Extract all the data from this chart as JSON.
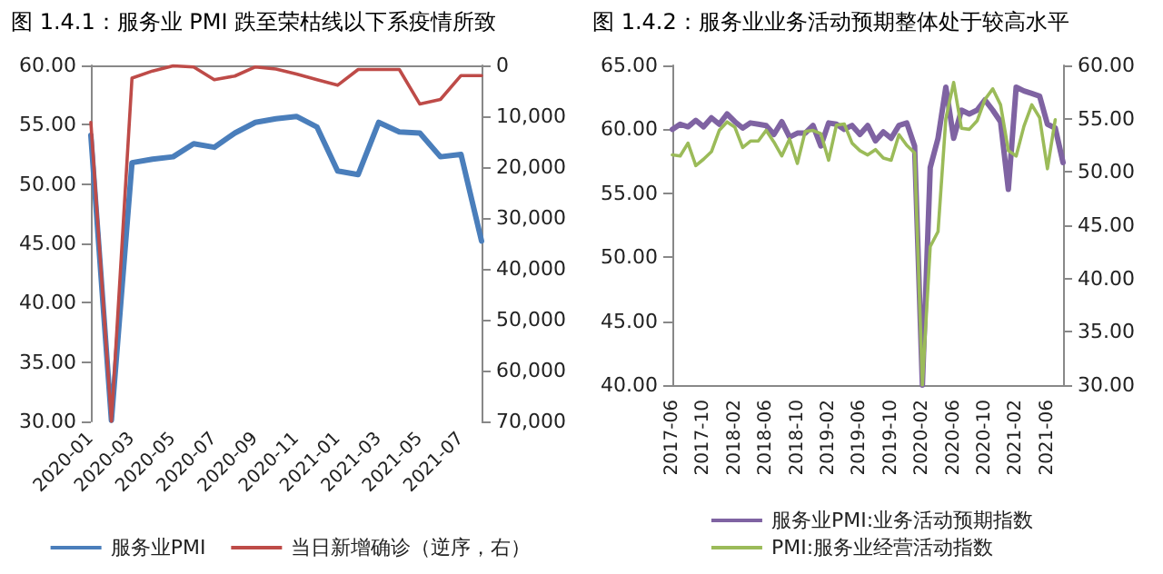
{
  "chart_data": [
    {
      "type": "line",
      "title": "图 1.4.1：服务业 PMI 跌至荣枯线以下系疫情所致",
      "categories": [
        "2020-01",
        null,
        "2020-03",
        null,
        "2020-05",
        null,
        "2020-07",
        null,
        "2020-09",
        null,
        "2020-11",
        null,
        "2021-01",
        null,
        "2021-03",
        null,
        "2021-05",
        null,
        "2021-07",
        null
      ],
      "series": [
        {
          "name": "服务业PMI",
          "color": "#4a7ebb",
          "values": [
            54.1,
            30.1,
            51.8,
            52.1,
            52.3,
            53.4,
            53.1,
            54.3,
            55.2,
            55.5,
            55.7,
            54.8,
            51.1,
            50.8,
            55.2,
            54.4,
            54.3,
            52.3,
            52.5,
            45.2
          ]
        },
        {
          "name": "当日新增确诊（逆序，右）",
          "color": "#be4b48",
          "axis": "y2",
          "values": [
            11200,
            70000,
            2500,
            1100,
            100,
            300,
            2800,
            2100,
            300,
            700,
            1700,
            2800,
            3900,
            800,
            800,
            800,
            7600,
            6700,
            2000,
            2000
          ]
        }
      ],
      "ylim": [
        30,
        60
      ],
      "yticks": [
        {
          "value": 30,
          "label": "30.00"
        },
        {
          "value": 35,
          "label": "35.00"
        },
        {
          "value": 40,
          "label": "40.00"
        },
        {
          "value": 45,
          "label": "45.00"
        },
        {
          "value": 50,
          "label": "50.00"
        },
        {
          "value": 55,
          "label": "55.00"
        },
        {
          "value": 60,
          "label": "60.00"
        }
      ],
      "y2lim": [
        70000,
        0
      ],
      "y2ticks": [
        0,
        {
          "value": 10000,
          "label": "10,000"
        },
        {
          "value": 20000,
          "label": "20,000"
        },
        {
          "value": 30000,
          "label": "30,000"
        },
        {
          "value": 40000,
          "label": "40,000"
        },
        {
          "value": 50000,
          "label": "50,000"
        },
        {
          "value": 60000,
          "label": "60,000"
        },
        {
          "value": 70000,
          "label": "70,000"
        }
      ],
      "grid": false,
      "legend": "bottom",
      "marker": "none",
      "line_style": "solid"
    },
    {
      "type": "line",
      "title": "图 1.4.2：服务业业务活动预期整体处于较高水平",
      "categories": [
        "2017-06",
        null,
        null,
        null,
        "2017-10",
        null,
        null,
        null,
        "2018-02",
        null,
        null,
        null,
        "2018-06",
        null,
        null,
        null,
        "2018-10",
        null,
        null,
        null,
        "2019-02",
        null,
        null,
        null,
        "2019-06",
        null,
        null,
        null,
        "2019-10",
        null,
        null,
        null,
        "2020-02",
        null,
        null,
        null,
        "2020-06",
        null,
        null,
        null,
        "2020-10",
        null,
        null,
        null,
        "2021-02",
        null,
        null,
        null,
        "2021-06",
        null,
        null
      ],
      "series": [
        {
          "name": "服务业PMI:业务活动预期指数",
          "color": "#7f63a2",
          "values": [
            60.0,
            60.4,
            60.2,
            60.7,
            60.2,
            60.9,
            60.4,
            61.2,
            60.6,
            60.1,
            60.5,
            60.4,
            60.3,
            59.6,
            60.6,
            59.4,
            59.7,
            59.7,
            60.3,
            58.7,
            60.5,
            60.4,
            60.0,
            60.3,
            59.6,
            60.3,
            59.1,
            59.8,
            59.3,
            60.3,
            60.5,
            58.7,
            40.0,
            57.0,
            59.3,
            63.3,
            59.3,
            61.5,
            61.2,
            61.5,
            62.3,
            61.5,
            60.6,
            55.3,
            63.3,
            63.0,
            62.8,
            62.6,
            60.4,
            60.1,
            57.4
          ]
        },
        {
          "name": "PMI:服务业经营活动指数",
          "color": "#9bbb59",
          "axis": "y2",
          "values": [
            51.6,
            51.5,
            52.7,
            50.6,
            51.2,
            51.9,
            53.9,
            54.7,
            54.2,
            52.3,
            52.9,
            52.9,
            53.9,
            52.8,
            51.5,
            53.1,
            50.8,
            53.8,
            53.9,
            53.6,
            51.1,
            54.4,
            54.5,
            52.7,
            52.0,
            51.6,
            52.1,
            51.3,
            51.1,
            53.5,
            52.5,
            51.8,
            30,
            43.0,
            44.4,
            55.0,
            58.4,
            54.1,
            54.0,
            54.8,
            56.8,
            57.8,
            56.3,
            52.0,
            51.5,
            54.3,
            56.3,
            55.1,
            50.3,
            54.9,
            null
          ]
        }
      ],
      "ylim": [
        40,
        65
      ],
      "yticks": [
        {
          "value": 40,
          "label": "40.00"
        },
        {
          "value": 45,
          "label": "45.00"
        },
        {
          "value": 50,
          "label": "50.00"
        },
        {
          "value": 55,
          "label": "55.00"
        },
        {
          "value": 60,
          "label": "60.00"
        },
        {
          "value": 65,
          "label": "65.00"
        }
      ],
      "y2lim": [
        30,
        60
      ],
      "y2ticks": [
        {
          "value": 30,
          "label": "30.00"
        },
        {
          "value": 35,
          "label": "35.00"
        },
        {
          "value": 40,
          "label": "40.00"
        },
        {
          "value": 45,
          "label": "45.00"
        },
        {
          "value": 50,
          "label": "50.00"
        },
        {
          "value": 55,
          "label": "55.00"
        },
        {
          "value": 60,
          "label": "60.00"
        }
      ],
      "grid": false,
      "legend": "bottom",
      "marker": "none",
      "line_style": "solid"
    }
  ]
}
